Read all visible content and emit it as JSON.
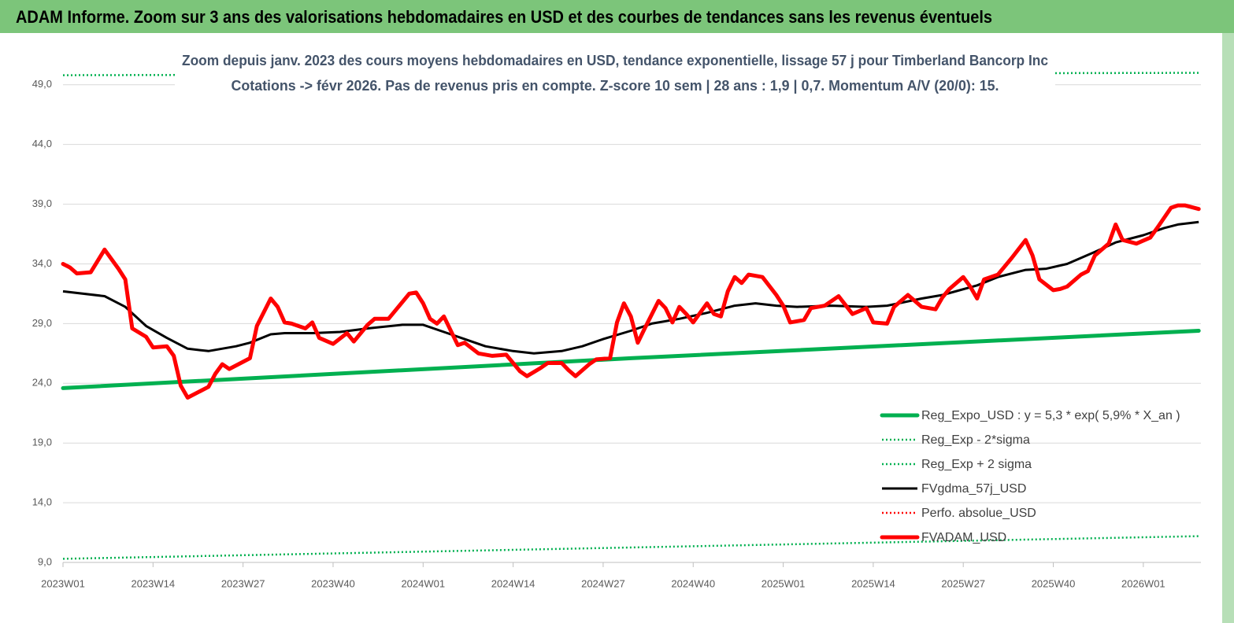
{
  "chart_data": {
    "type": "line",
    "title": "ADAM Informe. Zoom sur 3 ans des valorisations hebdomadaires en USD et des courbes de tendances sans les revenus éventuels",
    "subtitle": [
      "Zoom depuis janv. 2023 des cours moyens hebdomadaires en USD, tendance exponentielle, lissage 57 j pour Timberland Bancorp Inc",
      "Cotations -> févr 2026.  Pas de revenus pris en compte. Z-score 10 sem  | 28 ans : 1,9 | 0,7. Momentum A/V (20/0): 15."
    ],
    "xlim": [
      0,
      165
    ],
    "xticks": [
      {
        "value": 0,
        "label": "2023W01"
      },
      {
        "value": 13,
        "label": "2023W14"
      },
      {
        "value": 26,
        "label": "2023W27"
      },
      {
        "value": 39,
        "label": "2023W40"
      },
      {
        "value": 52,
        "label": "2024W01"
      },
      {
        "value": 65,
        "label": "2024W14"
      },
      {
        "value": 78,
        "label": "2024W27"
      },
      {
        "value": 91,
        "label": "2024W40"
      },
      {
        "value": 104,
        "label": "2025W01"
      },
      {
        "value": 117,
        "label": "2025W14"
      },
      {
        "value": 130,
        "label": "2025W27"
      },
      {
        "value": 143,
        "label": "2025W40"
      },
      {
        "value": 156,
        "label": "2026W01"
      }
    ],
    "ylim": [
      9,
      50.5
    ],
    "yticks": [
      {
        "value": 9,
        "label": "9,0"
      },
      {
        "value": 14,
        "label": "14,0"
      },
      {
        "value": 19,
        "label": "19,0"
      },
      {
        "value": 24,
        "label": "24,0"
      },
      {
        "value": 29,
        "label": "29,0"
      },
      {
        "value": 34,
        "label": "34,0"
      },
      {
        "value": 39,
        "label": "39,0"
      },
      {
        "value": 44,
        "label": "44,0"
      },
      {
        "value": 49,
        "label": "49,0"
      }
    ],
    "grid": true,
    "legend": "lower right",
    "series": [
      {
        "name": "Reg_Expo_USD : y = 5,3 * exp( 5,9% * X_an )",
        "color": "#00b050",
        "line_style": "thick",
        "x": [
          0,
          82,
          164
        ],
        "values": [
          23.6,
          26.1,
          28.4
        ]
      },
      {
        "name": "Reg_Exp - 2*sigma",
        "color": "#00b050",
        "line_style": "dotted",
        "x": [
          0,
          164
        ],
        "values": [
          9.3,
          11.2
        ]
      },
      {
        "name": "Reg_Exp + 2 sigma",
        "color": "#00b050",
        "line_style": "dotted",
        "x": [
          0,
          164
        ],
        "values": [
          49.8,
          50.0
        ]
      },
      {
        "name": "FVgdma_57j_USD",
        "color": "#000000",
        "line_style": "solid",
        "x": [
          0,
          6,
          9,
          12,
          15,
          18,
          21,
          25,
          27,
          30,
          32,
          36,
          40,
          44,
          49,
          52,
          55,
          58,
          61,
          65,
          68,
          72,
          75,
          78,
          82,
          85,
          89,
          93,
          97,
          100,
          103,
          106,
          111,
          116,
          119,
          124,
          127,
          132,
          135,
          139,
          142,
          145,
          149,
          152,
          156,
          159,
          161,
          164
        ],
        "values": [
          31.7,
          31.3,
          30.4,
          28.8,
          27.8,
          26.9,
          26.7,
          27.1,
          27.4,
          28.1,
          28.2,
          28.2,
          28.3,
          28.6,
          28.9,
          28.9,
          28.3,
          27.7,
          27.1,
          26.7,
          26.5,
          26.7,
          27.1,
          27.7,
          28.4,
          29.0,
          29.4,
          29.9,
          30.5,
          30.7,
          30.5,
          30.4,
          30.5,
          30.4,
          30.5,
          31.1,
          31.4,
          32.2,
          32.9,
          33.5,
          33.6,
          34.0,
          35.0,
          35.8,
          36.4,
          37.0,
          37.3,
          37.5
        ]
      },
      {
        "name": "Perfo. absolue_USD",
        "color": "#ff0000",
        "line_style": "dotted"
      },
      {
        "name": "FVADAM_USD",
        "color": "#ff0000",
        "line_style": "thick",
        "x": [
          0,
          1,
          2,
          4,
          6,
          8,
          9,
          10,
          12,
          13,
          15,
          16,
          17,
          18,
          20,
          21,
          22,
          23,
          24,
          26,
          27,
          28,
          30,
          31,
          32,
          33,
          35,
          36,
          37,
          39,
          41,
          42,
          44,
          45,
          47,
          48,
          50,
          51,
          52,
          53,
          54,
          55,
          57,
          58,
          60,
          62,
          64,
          66,
          67,
          69,
          70,
          72,
          73,
          74,
          76,
          77,
          79,
          80,
          81,
          82,
          83,
          84,
          86,
          87,
          88,
          89,
          90,
          91,
          93,
          94,
          95,
          96,
          97,
          98,
          99,
          101,
          103,
          104,
          105,
          107,
          108,
          110,
          112,
          114,
          116,
          117,
          119,
          120,
          122,
          124,
          126,
          127,
          128,
          130,
          131,
          132,
          133,
          135,
          137,
          139,
          140,
          141,
          143,
          144,
          145,
          147,
          148,
          149,
          151,
          152,
          153,
          155,
          157,
          158,
          160,
          161,
          162,
          164
        ],
        "values": [
          34.0,
          33.7,
          33.2,
          33.3,
          35.2,
          33.6,
          32.7,
          28.6,
          27.9,
          27.0,
          27.1,
          26.3,
          23.8,
          22.8,
          23.4,
          23.7,
          24.8,
          25.6,
          25.2,
          25.8,
          26.1,
          28.8,
          31.1,
          30.4,
          29.1,
          29.0,
          28.6,
          29.1,
          27.8,
          27.3,
          28.2,
          27.5,
          28.9,
          29.4,
          29.4,
          30.1,
          31.5,
          31.6,
          30.7,
          29.4,
          29.0,
          29.6,
          27.2,
          27.4,
          26.5,
          26.3,
          26.4,
          25.0,
          24.6,
          25.3,
          25.7,
          25.7,
          25.1,
          24.6,
          25.6,
          26.0,
          26.1,
          29.1,
          30.7,
          29.6,
          27.4,
          28.6,
          30.9,
          30.3,
          29.1,
          30.4,
          29.8,
          29.1,
          30.7,
          29.8,
          29.6,
          31.7,
          32.9,
          32.4,
          33.1,
          32.9,
          31.4,
          30.5,
          29.1,
          29.3,
          30.3,
          30.5,
          31.3,
          29.8,
          30.3,
          29.1,
          29.0,
          30.4,
          31.4,
          30.4,
          30.2,
          31.2,
          31.9,
          32.9,
          32.1,
          31.1,
          32.7,
          33.1,
          34.5,
          36.0,
          34.7,
          32.7,
          31.8,
          31.9,
          32.1,
          33.1,
          33.4,
          34.7,
          35.7,
          37.3,
          36.0,
          35.7,
          36.2,
          37.0,
          38.7,
          38.9,
          38.9,
          38.6
        ]
      }
    ]
  }
}
